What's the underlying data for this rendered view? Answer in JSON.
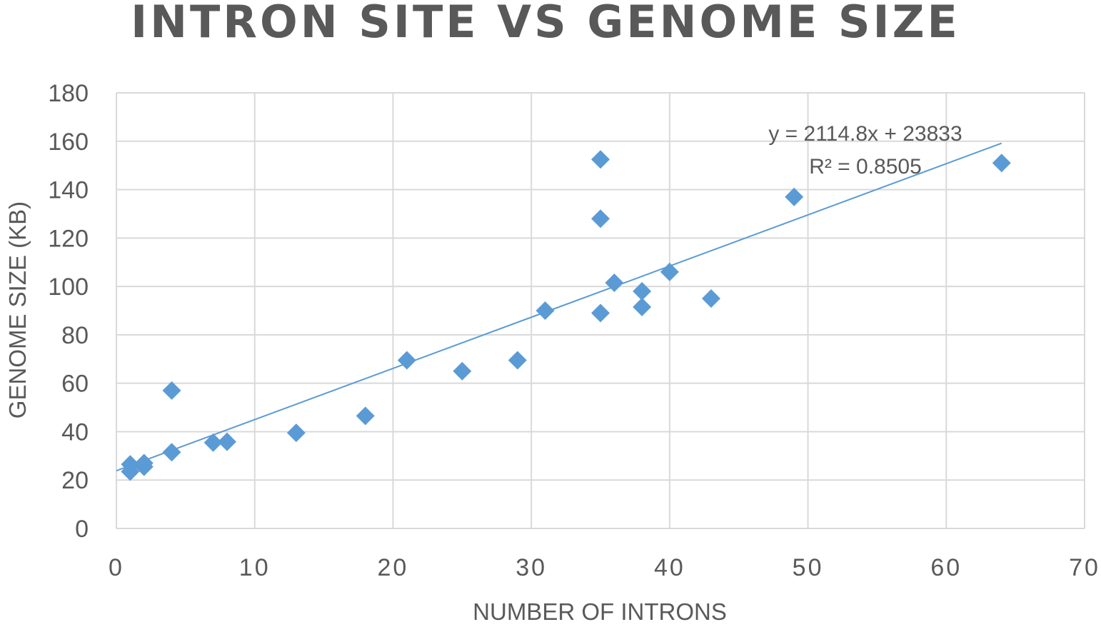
{
  "chart_data": {
    "type": "scatter",
    "title": "INTRON SITE VS GENOME SIZE",
    "xlabel": "NUMBER OF INTRONS",
    "ylabel": "GENOME SIZE (KB)",
    "xlim": [
      0,
      70
    ],
    "ylim": [
      0,
      180
    ],
    "xticks": [
      "0",
      "10",
      "20",
      "30",
      "40",
      "50",
      "60",
      "70"
    ],
    "yticks": [
      "0",
      "20",
      "40",
      "60",
      "80",
      "100",
      "120",
      "140",
      "160",
      "180"
    ],
    "grid": true,
    "legend": "none",
    "marker": "diamond",
    "color": "#5b9bd5",
    "series": [
      {
        "points": [
          {
            "x": 1,
            "y": 23.5
          },
          {
            "x": 1,
            "y": 26.5
          },
          {
            "x": 2,
            "y": 25.5
          },
          {
            "x": 2,
            "y": 27
          },
          {
            "x": 4,
            "y": 31.5
          },
          {
            "x": 4,
            "y": 57
          },
          {
            "x": 7,
            "y": 35.5
          },
          {
            "x": 8,
            "y": 35.8
          },
          {
            "x": 13,
            "y": 39.5
          },
          {
            "x": 18,
            "y": 46.5
          },
          {
            "x": 21,
            "y": 69.5
          },
          {
            "x": 25,
            "y": 65
          },
          {
            "x": 29,
            "y": 69.5
          },
          {
            "x": 31,
            "y": 90
          },
          {
            "x": 35,
            "y": 89
          },
          {
            "x": 35,
            "y": 128
          },
          {
            "x": 35,
            "y": 152.5
          },
          {
            "x": 36,
            "y": 101.5
          },
          {
            "x": 38,
            "y": 91.5
          },
          {
            "x": 38,
            "y": 98
          },
          {
            "x": 40,
            "y": 106
          },
          {
            "x": 43,
            "y": 95
          },
          {
            "x": 49,
            "y": 137
          },
          {
            "x": 64,
            "y": 151
          }
        ]
      }
    ],
    "trendline": {
      "type": "linear",
      "equation": "y = 2114.8x + 23833",
      "r_squared": "R² = 0.8505",
      "slope": 2.1148,
      "intercept": 23.833,
      "x_range": [
        0,
        64
      ]
    }
  }
}
